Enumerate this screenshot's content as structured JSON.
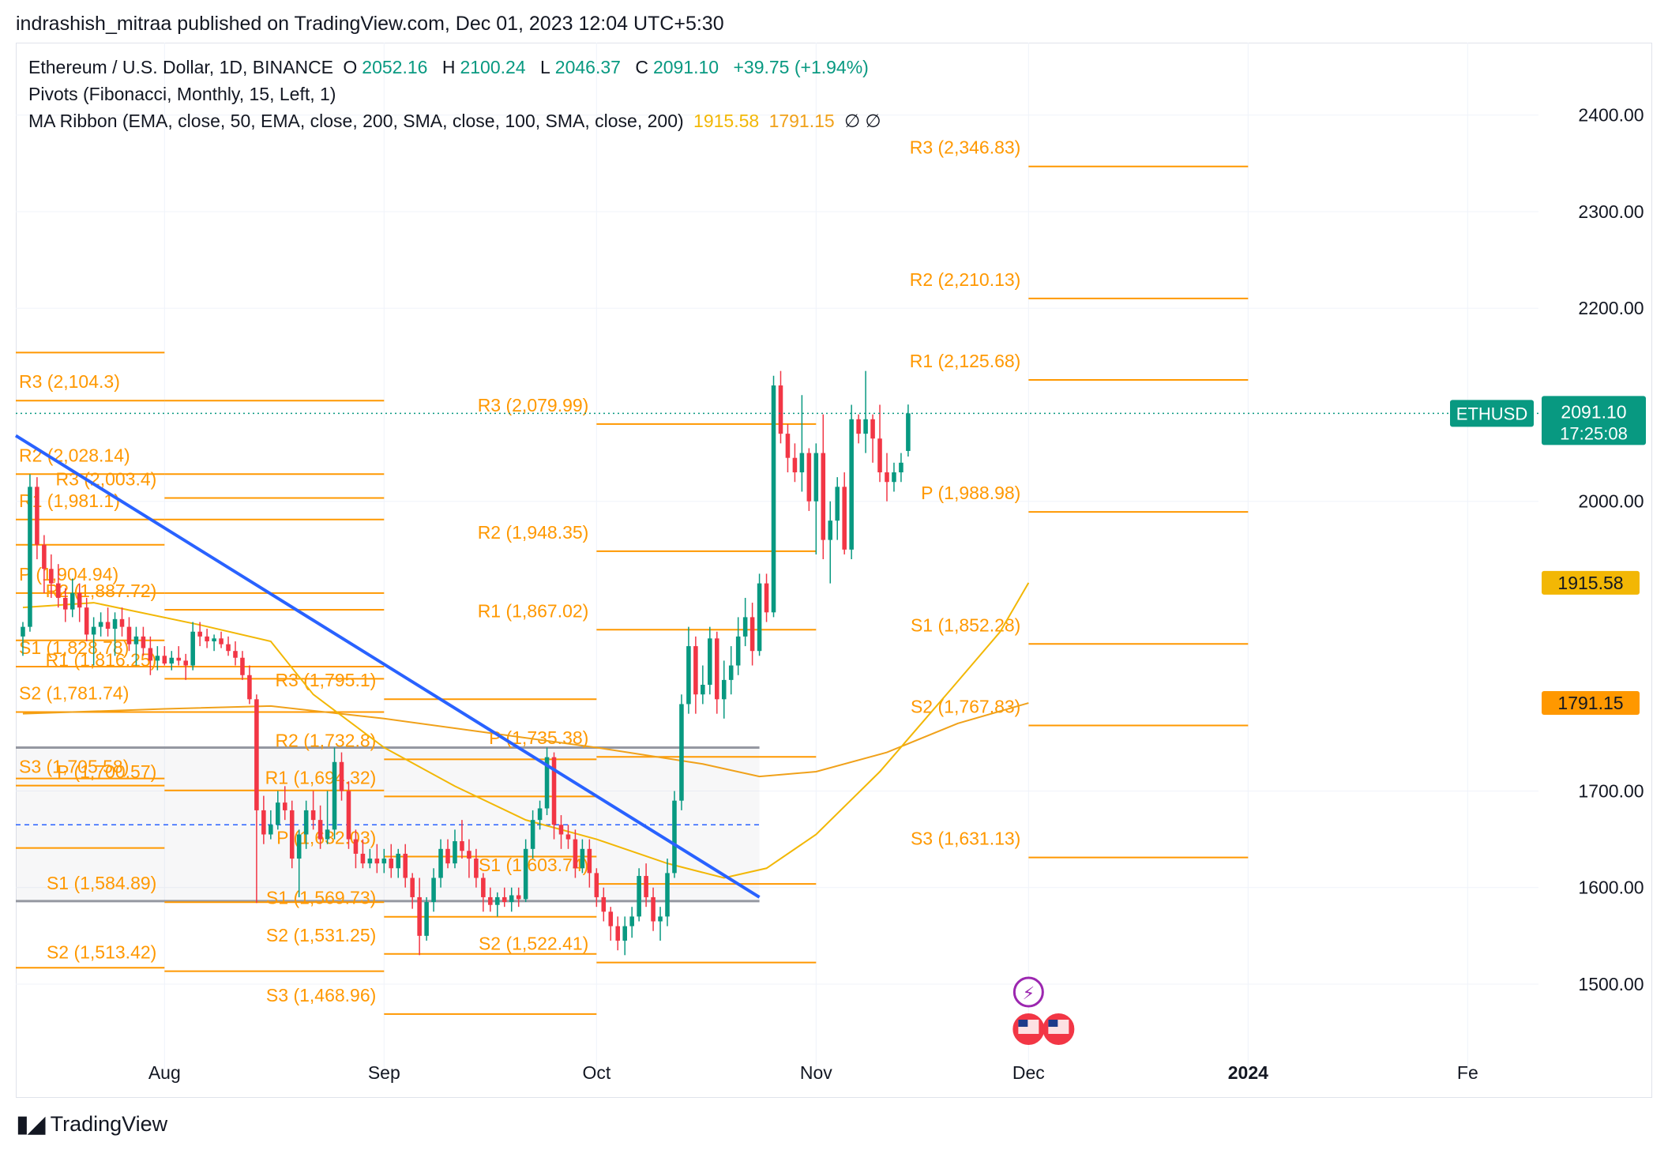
{
  "header": {
    "published_by": "indrashish_mitraa published on TradingView.com, Dec 01, 2023 12:04 UTC+5:30"
  },
  "legend": {
    "symbol": "Ethereum / U.S. Dollar, 1D, BINANCE",
    "open_label": "O",
    "open": "2052.16",
    "high_label": "H",
    "high": "2100.24",
    "low_label": "L",
    "low": "2046.37",
    "close_label": "C",
    "close": "2091.10",
    "change": "+39.75 (+1.94%)",
    "pivots": "Pivots (Fibonacci, Monthly, 15, Left, 1)",
    "ma_ribbon": "MA Ribbon (EMA, close, 50, EMA, close, 200, SMA, close, 100, SMA, close, 200)",
    "ma1_value": "1915.58",
    "ma2_value": "1791.15",
    "ma_na": "∅ ∅"
  },
  "footer": {
    "brand": "TradingView"
  },
  "colors": {
    "up": "#089981",
    "down": "#f23645",
    "pivot": "#ff9800",
    "trendline": "#2962ff",
    "ema50": "#f2b705",
    "ema200": "#f0a11a",
    "range_box": "#9598a1"
  },
  "chart_data": {
    "type": "candlestick",
    "symbol": "ETHUSD",
    "y_axis": {
      "range": [
        1410,
        2475
      ],
      "ticks": [
        "2400.00",
        "2300.00",
        "2200.00",
        "2000.00",
        "1700.00",
        "1600.00",
        "1500.00"
      ],
      "tick_values": [
        2400,
        2300,
        2200,
        2000,
        1700,
        1600,
        1500
      ]
    },
    "x_axis": {
      "range_days": [
        "2023-07-11",
        "2024-02-11"
      ],
      "ticks": [
        {
          "label": "Aug",
          "date": "2023-08-01",
          "bold": false
        },
        {
          "label": "Sep",
          "date": "2023-09-01",
          "bold": false
        },
        {
          "label": "Oct",
          "date": "2023-10-01",
          "bold": false
        },
        {
          "label": "Nov",
          "date": "2023-11-01",
          "bold": false
        },
        {
          "label": "Dec",
          "date": "2023-12-01",
          "bold": false
        },
        {
          "label": "2024",
          "date": "2024-01-01",
          "bold": true
        },
        {
          "label": "Fe",
          "date": "2024-02-01",
          "bold": false
        }
      ]
    },
    "last_price": {
      "label": "ETHUSD",
      "value": "2091.10",
      "countdown": "17:25:08",
      "y": 2091.1
    },
    "ma_price_labels": [
      {
        "value": "1915.58",
        "y": 1915.58,
        "bg": "#f2b705"
      },
      {
        "value": "1791.15",
        "y": 1791.15,
        "bg": "#ff9800"
      }
    ],
    "grid": true,
    "candles_start_date": "2023-07-12",
    "candles": [
      [
        1860,
        1875,
        1840,
        1870
      ],
      [
        1870,
        2028,
        1865,
        2015
      ],
      [
        2015,
        2025,
        1940,
        1955
      ],
      [
        1955,
        1965,
        1905,
        1930
      ],
      [
        1930,
        1945,
        1900,
        1915
      ],
      [
        1915,
        1935,
        1890,
        1900
      ],
      [
        1900,
        1910,
        1875,
        1888
      ],
      [
        1888,
        1920,
        1880,
        1905
      ],
      [
        1905,
        1915,
        1875,
        1890
      ],
      [
        1890,
        1900,
        1855,
        1862
      ],
      [
        1862,
        1880,
        1830,
        1870
      ],
      [
        1870,
        1885,
        1860,
        1875
      ],
      [
        1875,
        1890,
        1860,
        1868
      ],
      [
        1868,
        1885,
        1840,
        1878
      ],
      [
        1878,
        1890,
        1860,
        1870
      ],
      [
        1870,
        1880,
        1845,
        1852
      ],
      [
        1852,
        1870,
        1830,
        1860
      ],
      [
        1860,
        1870,
        1840,
        1848
      ],
      [
        1848,
        1860,
        1820,
        1835
      ],
      [
        1835,
        1850,
        1825,
        1840
      ],
      [
        1840,
        1850,
        1830,
        1832
      ],
      [
        1832,
        1845,
        1825,
        1838
      ],
      [
        1838,
        1850,
        1830,
        1835
      ],
      [
        1835,
        1842,
        1815,
        1830
      ],
      [
        1830,
        1875,
        1825,
        1865
      ],
      [
        1865,
        1875,
        1850,
        1860
      ],
      [
        1860,
        1868,
        1848,
        1855
      ],
      [
        1855,
        1862,
        1845,
        1858
      ],
      [
        1858,
        1865,
        1848,
        1852
      ],
      [
        1852,
        1860,
        1840,
        1845
      ],
      [
        1845,
        1855,
        1830,
        1838
      ],
      [
        1838,
        1845,
        1815,
        1820
      ],
      [
        1820,
        1830,
        1790,
        1795
      ],
      [
        1795,
        1800,
        1584,
        1680
      ],
      [
        1680,
        1695,
        1645,
        1655
      ],
      [
        1655,
        1680,
        1650,
        1665
      ],
      [
        1665,
        1700,
        1660,
        1688
      ],
      [
        1688,
        1705,
        1670,
        1680
      ],
      [
        1680,
        1690,
        1620,
        1630
      ],
      [
        1630,
        1660,
        1590,
        1655
      ],
      [
        1655,
        1690,
        1640,
        1680
      ],
      [
        1680,
        1700,
        1660,
        1670
      ],
      [
        1670,
        1685,
        1640,
        1650
      ],
      [
        1650,
        1700,
        1645,
        1660
      ],
      [
        1660,
        1745,
        1650,
        1730
      ],
      [
        1730,
        1740,
        1690,
        1700
      ],
      [
        1700,
        1710,
        1640,
        1650
      ],
      [
        1650,
        1660,
        1620,
        1635
      ],
      [
        1635,
        1650,
        1620,
        1625
      ],
      [
        1625,
        1640,
        1620,
        1630
      ],
      [
        1630,
        1645,
        1615,
        1625
      ],
      [
        1625,
        1640,
        1615,
        1630
      ],
      [
        1630,
        1645,
        1610,
        1620
      ],
      [
        1620,
        1640,
        1610,
        1635
      ],
      [
        1635,
        1645,
        1600,
        1610
      ],
      [
        1610,
        1615,
        1578,
        1590
      ],
      [
        1590,
        1610,
        1530,
        1550
      ],
      [
        1550,
        1590,
        1545,
        1585
      ],
      [
        1585,
        1620,
        1575,
        1610
      ],
      [
        1610,
        1650,
        1600,
        1640
      ],
      [
        1640,
        1650,
        1620,
        1625
      ],
      [
        1625,
        1660,
        1620,
        1648
      ],
      [
        1648,
        1670,
        1630,
        1638
      ],
      [
        1638,
        1650,
        1610,
        1630
      ],
      [
        1630,
        1640,
        1600,
        1610
      ],
      [
        1610,
        1615,
        1575,
        1590
      ],
      [
        1590,
        1600,
        1575,
        1582
      ],
      [
        1582,
        1595,
        1570,
        1590
      ],
      [
        1590,
        1600,
        1580,
        1585
      ],
      [
        1585,
        1600,
        1575,
        1592
      ],
      [
        1592,
        1600,
        1580,
        1588
      ],
      [
        1588,
        1650,
        1585,
        1640
      ],
      [
        1640,
        1680,
        1630,
        1670
      ],
      [
        1670,
        1690,
        1660,
        1682
      ],
      [
        1682,
        1745,
        1675,
        1735
      ],
      [
        1735,
        1740,
        1650,
        1665
      ],
      [
        1665,
        1675,
        1640,
        1655
      ],
      [
        1655,
        1665,
        1640,
        1650
      ],
      [
        1650,
        1660,
        1610,
        1620
      ],
      [
        1620,
        1650,
        1615,
        1640
      ],
      [
        1640,
        1650,
        1600,
        1615
      ],
      [
        1615,
        1620,
        1580,
        1590
      ],
      [
        1590,
        1600,
        1565,
        1575
      ],
      [
        1575,
        1580,
        1545,
        1560
      ],
      [
        1560,
        1570,
        1535,
        1545
      ],
      [
        1545,
        1570,
        1530,
        1560
      ],
      [
        1560,
        1580,
        1548,
        1570
      ],
      [
        1570,
        1620,
        1565,
        1612
      ],
      [
        1612,
        1625,
        1580,
        1590
      ],
      [
        1590,
        1600,
        1555,
        1565
      ],
      [
        1565,
        1580,
        1545,
        1570
      ],
      [
        1570,
        1630,
        1560,
        1615
      ],
      [
        1615,
        1700,
        1610,
        1690
      ],
      [
        1690,
        1800,
        1680,
        1790
      ],
      [
        1790,
        1870,
        1780,
        1850
      ],
      [
        1850,
        1860,
        1780,
        1800
      ],
      [
        1800,
        1830,
        1790,
        1810
      ],
      [
        1810,
        1870,
        1800,
        1858
      ],
      [
        1858,
        1865,
        1780,
        1795
      ],
      [
        1795,
        1835,
        1775,
        1815
      ],
      [
        1815,
        1850,
        1800,
        1830
      ],
      [
        1830,
        1880,
        1820,
        1860
      ],
      [
        1860,
        1900,
        1850,
        1880
      ],
      [
        1880,
        1895,
        1830,
        1845
      ],
      [
        1845,
        1925,
        1840,
        1915
      ],
      [
        1915,
        1925,
        1875,
        1885
      ],
      [
        1885,
        2130,
        1880,
        2120
      ],
      [
        2120,
        2135,
        2060,
        2070
      ],
      [
        2070,
        2080,
        2030,
        2045
      ],
      [
        2045,
        2060,
        2020,
        2030
      ],
      [
        2030,
        2110,
        2010,
        2050
      ],
      [
        2050,
        2055,
        1990,
        2000
      ],
      [
        2000,
        2060,
        1945,
        2050
      ],
      [
        2050,
        2090,
        1940,
        1960
      ],
      [
        1960,
        2000,
        1915,
        1980
      ],
      [
        1980,
        2025,
        1960,
        2015
      ],
      [
        2015,
        2030,
        1945,
        1950
      ],
      [
        1950,
        2100,
        1940,
        2085
      ],
      [
        2085,
        2090,
        2060,
        2070
      ],
      [
        2070,
        2135,
        2050,
        2085
      ],
      [
        2085,
        2090,
        2040,
        2065
      ],
      [
        2065,
        2100,
        2020,
        2030
      ],
      [
        2030,
        2050,
        2000,
        2020
      ],
      [
        2020,
        2040,
        2010,
        2030
      ],
      [
        2030,
        2050,
        2020,
        2040
      ],
      [
        2052.16,
        2100.24,
        2046.37,
        2091.1
      ]
    ],
    "ema50_points": [
      [
        "2023-07-12",
        1890
      ],
      [
        "2023-07-22",
        1895
      ],
      [
        "2023-08-06",
        1872
      ],
      [
        "2023-08-16",
        1855
      ],
      [
        "2023-08-22",
        1800
      ],
      [
        "2023-09-01",
        1745
      ],
      [
        "2023-09-11",
        1705
      ],
      [
        "2023-09-21",
        1670
      ],
      [
        "2023-10-01",
        1650
      ],
      [
        "2023-10-11",
        1625
      ],
      [
        "2023-10-19",
        1610
      ],
      [
        "2023-10-25",
        1620
      ],
      [
        "2023-11-01",
        1655
      ],
      [
        "2023-11-10",
        1720
      ],
      [
        "2023-11-20",
        1805
      ],
      [
        "2023-11-27",
        1865
      ],
      [
        "2023-12-01",
        1915.58
      ]
    ],
    "ema200_points": [
      [
        "2023-07-12",
        1780
      ],
      [
        "2023-08-01",
        1785
      ],
      [
        "2023-08-16",
        1788
      ],
      [
        "2023-09-01",
        1775
      ],
      [
        "2023-09-16",
        1760
      ],
      [
        "2023-10-01",
        1745
      ],
      [
        "2023-10-16",
        1728
      ],
      [
        "2023-10-24",
        1715
      ],
      [
        "2023-11-01",
        1720
      ],
      [
        "2023-11-11",
        1740
      ],
      [
        "2023-11-21",
        1770
      ],
      [
        "2023-12-01",
        1791.15
      ]
    ],
    "trendline": {
      "from": [
        "2023-07-11",
        2068
      ],
      "to": [
        "2023-10-24",
        1590
      ]
    },
    "range_box": {
      "from": "2023-07-11",
      "to": "2023-10-24",
      "top": 1745,
      "bottom": 1586,
      "mid": 1665
    },
    "pivots": [
      {
        "from": "2023-07-11",
        "to": "2023-08-01",
        "levels": [
          {
            "name": "R3",
            "label": "R3 (2,104.3)",
            "value": 2104.3
          },
          {
            "name": "R2",
            "label": "R2 (2,028.14)",
            "value": 2028.14
          },
          {
            "name": "R1",
            "label": "R1 (1,981.1)",
            "value": 1981.1
          },
          {
            "name": "P",
            "label": "P (1,904.94)",
            "value": 1904.94
          },
          {
            "name": "S1",
            "label": "S1 (1,828.78)",
            "value": 1828.78
          },
          {
            "name": "S2",
            "label": "S2 (1,781.74)",
            "value": 1781.74
          },
          {
            "name": "S3",
            "label": "S3 (1,705.58)",
            "value": 1705.58
          }
        ],
        "extra_values": [
          2154.0,
          1955.0,
          1856.0,
          1713.0,
          1641.0,
          1517.0
        ]
      },
      {
        "from": "2023-08-01",
        "to": "2023-09-01",
        "levels": [
          {
            "name": "R3",
            "label": "R3 (2,003.4)",
            "value": 2003.4
          },
          {
            "name": "R2",
            "label": "R2 (1,887.72)",
            "value": 1887.72
          },
          {
            "name": "R1",
            "label": "R1 (1,816.25)",
            "value": 1816.25
          },
          {
            "name": "P",
            "label": "P (1,700.57)",
            "value": 1700.57
          },
          {
            "name": "S1",
            "label": "S1 (1,584.89)",
            "value": 1584.89
          },
          {
            "name": "S2",
            "label": "S2 (1,513.42)",
            "value": 1513.42
          }
        ],
        "extra_values": [
          2104.3,
          2028.14,
          1981.1,
          1904.94,
          1828.78,
          1781.74
        ]
      },
      {
        "from": "2023-09-01",
        "to": "2023-10-01",
        "levels": [
          {
            "name": "R3",
            "label": "R3 (1,795.1)",
            "value": 1795.1
          },
          {
            "name": "R2",
            "label": "R2 (1,732.8)",
            "value": 1732.8
          },
          {
            "name": "R1",
            "label": "R1 (1,694.32)",
            "value": 1694.32
          },
          {
            "name": "P",
            "label": "P (1,632.03)",
            "value": 1632.03
          },
          {
            "name": "S1",
            "label": "S1 (1,569.73)",
            "value": 1569.73
          },
          {
            "name": "S2",
            "label": "S2 (1,531.25)",
            "value": 1531.25
          },
          {
            "name": "S3",
            "label": "S3 (1,468.96)",
            "value": 1468.96
          }
        ],
        "extra_values": []
      },
      {
        "from": "2023-10-01",
        "to": "2023-11-01",
        "levels": [
          {
            "name": "R3",
            "label": "R3 (2,079.99)",
            "value": 2079.99
          },
          {
            "name": "R2",
            "label": "R2 (1,948.35)",
            "value": 1948.35
          },
          {
            "name": "R1",
            "label": "R1 (1,867.02)",
            "value": 1867.02
          },
          {
            "name": "P",
            "label": "P (1,735.38)",
            "value": 1735.38
          },
          {
            "name": "S1",
            "label": "S1 (1,603.74)",
            "value": 1603.74
          },
          {
            "name": "S2",
            "label": "S2 (1,522.41)",
            "value": 1522.41
          }
        ],
        "extra_values": []
      },
      {
        "from": "2023-12-01",
        "to": "2024-01-01",
        "levels": [
          {
            "name": "R3",
            "label": "R3 (2,346.83)",
            "value": 2346.83
          },
          {
            "name": "R2",
            "label": "R2 (2,210.13)",
            "value": 2210.13
          },
          {
            "name": "R1",
            "label": "R1 (2,125.68)",
            "value": 2125.68
          },
          {
            "name": "P",
            "label": "P (1,988.98)",
            "value": 1988.98
          },
          {
            "name": "S1",
            "label": "S1 (1,852.28)",
            "value": 1852.28
          },
          {
            "name": "S2",
            "label": "S2 (1,767.83)",
            "value": 1767.83
          },
          {
            "name": "S3",
            "label": "S3 (1,631.13)",
            "value": 1631.13
          }
        ],
        "extra_values": []
      }
    ],
    "events": [
      {
        "date": "2023-12-01",
        "icon": "lightning-icon"
      },
      {
        "date": "2023-12-01",
        "icon": "us-flag-icon"
      },
      {
        "date": "2023-12-02",
        "icon": "us-flag-icon"
      }
    ]
  }
}
